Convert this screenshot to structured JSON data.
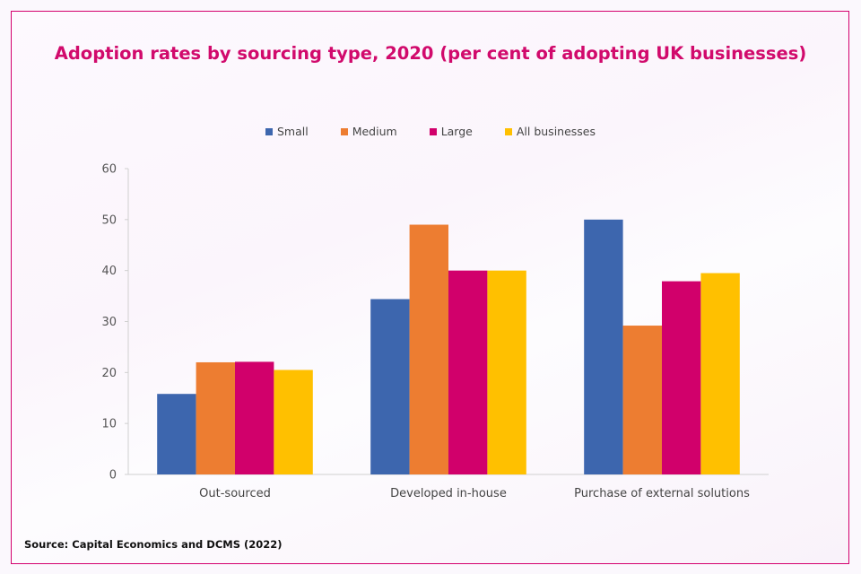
{
  "chart_data": {
    "type": "bar",
    "title": "Adoption rates by sourcing type, 2020 (per cent of adopting UK businesses)",
    "categories": [
      "Out-sourced",
      "Developed in-house",
      "Purchase of external solutions"
    ],
    "series": [
      {
        "name": "Small",
        "color": "#3d66ae",
        "values": [
          15.8,
          34.4,
          50.0
        ]
      },
      {
        "name": "Medium",
        "color": "#ed7d31",
        "values": [
          22.0,
          49.0,
          29.2
        ]
      },
      {
        "name": "Large",
        "color": "#d1006b",
        "values": [
          22.1,
          40.0,
          37.9
        ]
      },
      {
        "name": "All businesses",
        "color": "#ffc000",
        "values": [
          20.5,
          40.0,
          39.5
        ]
      }
    ],
    "ylim": [
      0,
      60
    ],
    "yticks": [
      "0",
      "10",
      "20",
      "30",
      "40",
      "50",
      "60"
    ],
    "legend_position": "top",
    "grid": false,
    "xlabel": "",
    "ylabel": ""
  },
  "source": "Source: Capital Economics and DCMS (2022)"
}
